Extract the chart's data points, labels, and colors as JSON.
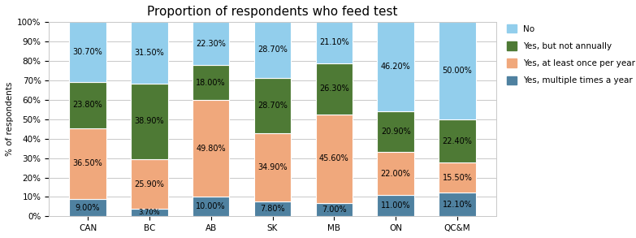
{
  "title": "Proportion of respondents who feed test",
  "categories": [
    "CAN",
    "BC",
    "AB",
    "SK",
    "MB",
    "ON",
    "QC&M"
  ],
  "series": [
    {
      "label": "Yes, multiple times a year",
      "color": "#4F81A0",
      "values": [
        9.0,
        3.7,
        10.0,
        7.8,
        7.0,
        11.0,
        12.1
      ]
    },
    {
      "label": "Yes, at least once per year",
      "color": "#F0A87C",
      "values": [
        36.5,
        25.9,
        49.8,
        34.9,
        45.6,
        22.0,
        15.5
      ]
    },
    {
      "label": "Yes, but not annually",
      "color": "#4E7A35",
      "values": [
        23.8,
        38.9,
        18.0,
        28.7,
        26.3,
        20.9,
        22.4
      ]
    },
    {
      "label": "No",
      "color": "#92CEEC",
      "values": [
        30.7,
        31.5,
        22.3,
        28.7,
        21.1,
        46.2,
        50.0
      ]
    }
  ],
  "ylabel": "% of respondents",
  "ylim": [
    0,
    100
  ],
  "yticks": [
    0,
    10,
    20,
    30,
    40,
    50,
    60,
    70,
    80,
    90,
    100
  ],
  "ytick_labels": [
    "0%",
    "10%",
    "20%",
    "30%",
    "40%",
    "50%",
    "60%",
    "70%",
    "80%",
    "90%",
    "100%"
  ],
  "background_color": "#FFFFFF",
  "grid_color": "#C8C8C8",
  "title_fontsize": 11,
  "label_fontsize": 7,
  "tick_fontsize": 7.5,
  "legend_fontsize": 7.5,
  "bar_width": 0.6,
  "bar_edge_color": "#FFFFFF"
}
